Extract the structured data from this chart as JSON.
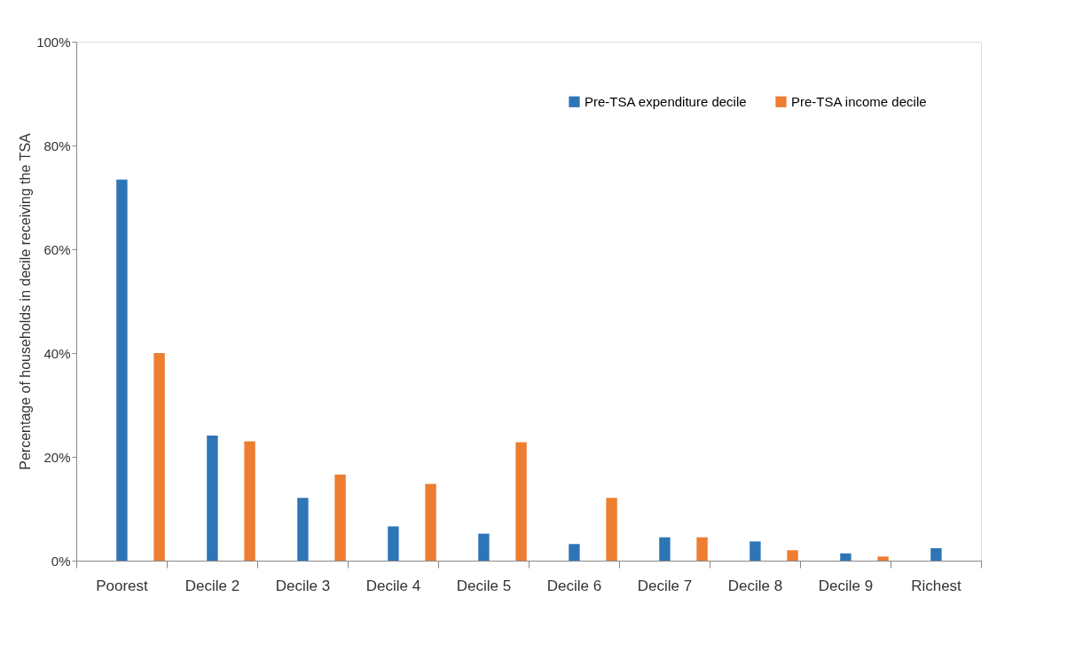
{
  "chart_data": {
    "type": "bar",
    "ylabel": "Percentage of households in decile receiving the TSA",
    "categories": [
      "Poorest",
      "Decile 2",
      "Decile 3",
      "Decile 4",
      "Decile 5",
      "Decile 6",
      "Decile 7",
      "Decile 8",
      "Decile 9",
      "Richest"
    ],
    "series": [
      {
        "name": "Pre-TSA expenditure decile",
        "color": "#2e75b6",
        "values": [
          73.4,
          24.1,
          12.1,
          6.6,
          5.2,
          3.2,
          4.5,
          3.7,
          1.4,
          2.4
        ]
      },
      {
        "name": "Pre-TSA income decile",
        "color": "#ed7d31",
        "values": [
          40.0,
          23.0,
          16.6,
          14.8,
          22.8,
          12.1,
          4.5,
          2.0,
          0.8,
          null
        ]
      }
    ],
    "ylim": [
      0,
      100
    ],
    "yticks": [
      {
        "value": 0,
        "label": "0%"
      },
      {
        "value": 20,
        "label": "20%"
      },
      {
        "value": 40,
        "label": "40%"
      },
      {
        "value": 60,
        "label": "60%"
      },
      {
        "value": 80,
        "label": "80%"
      },
      {
        "value": 100,
        "label": "100%"
      }
    ],
    "grid": false,
    "legend": "top right"
  }
}
